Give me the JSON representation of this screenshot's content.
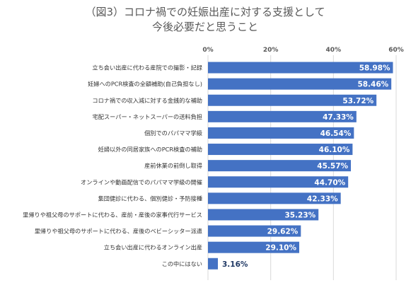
{
  "chart_data": {
    "type": "bar",
    "orientation": "horizontal",
    "title_lines": [
      "（図3）コロナ禍での妊娠出産に対する支援として",
      "今後必要だと思うこと"
    ],
    "x_ticks": [
      "0%",
      "20%",
      "40%",
      "60%"
    ],
    "xlim": [
      0,
      60
    ],
    "bar_color": "#4472c4",
    "categories": [
      "立ち会い出産に代わる産院での撮影・記録",
      "妊婦へのPCR検査の全額補助(自己負担なし)",
      "コロナ禍での収入減に対する金銭的な補助",
      "宅配スーパー・ネットスーパーの送料負担",
      "個別でのパパママ学級",
      "妊婦以外の同居家族へのPCR検査の補助",
      "産前休業の前倒し取得",
      "オンラインや動画配信でのパパママ学級の開催",
      "集団健診に代わる、個別健診・予防接種",
      "里帰りや祖父母のサポートに代わる、産前・産後の家事代行サービス",
      "里帰りや祖父母のサポートに代わる、産後のベビーシッター派遣",
      "立ち会い出産に代わるオンライン出産",
      "この中にはない"
    ],
    "values": [
      58.98,
      58.46,
      53.72,
      47.33,
      46.54,
      46.1,
      45.57,
      44.7,
      42.33,
      35.23,
      29.62,
      29.1,
      3.16
    ],
    "value_labels": [
      "58.98%",
      "58.46%",
      "53.72%",
      "47.33%",
      "46.54%",
      "46.10%",
      "45.57%",
      "44.70%",
      "42.33%",
      "35.23%",
      "29.62%",
      "29.10%",
      "3.16%"
    ]
  }
}
